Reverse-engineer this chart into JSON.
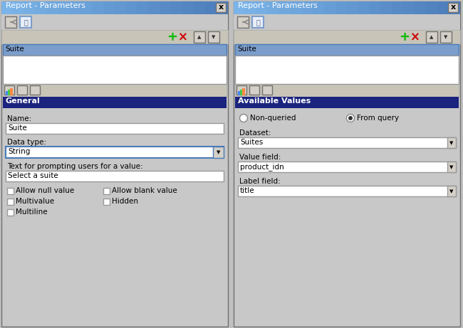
{
  "bg_color": "#c0c0c0",
  "dialog_bg": "#c8c8c8",
  "title_bar_gradient_left": "#7ab4e8",
  "title_bar_gradient_right": "#4a7ab8",
  "title_bar_text": "Report - Parameters",
  "dark_blue": "#1a237e",
  "white": "#ffffff",
  "light_gray": "#d4d0c8",
  "medium_gray": "#b8b4a8",
  "border_dark": "#707070",
  "border_light": "#f0f0f0",
  "text_color": "#000000",
  "selected_item_bg": "#7b9ecc",
  "selected_item_border": "#4a7ab8",
  "toolbar_bg": "#c8c4b8",
  "green_plus": "#00bb00",
  "red_x": "#cc0000",
  "left_panel": {
    "toolbar_section_label": "General",
    "name_label": "Name:",
    "name_value": "Suite",
    "datatype_label": "Data type:",
    "datatype_value": "String",
    "prompt_label": "Text for prompting users for a value:",
    "prompt_value": "Select a suite",
    "checkboxes_col1": [
      "Allow null value",
      "Multivalue",
      "Multiline"
    ],
    "checkboxes_col2": [
      "Allow blank value",
      "Hidden",
      ""
    ]
  },
  "right_panel": {
    "toolbar_section_label": "Available Values",
    "radio_options": [
      "Non-queried",
      "From query"
    ],
    "radio_selected": 1,
    "dataset_label": "Dataset:",
    "dataset_value": "Suites",
    "value_field_label": "Value field:",
    "value_field_value": "product_idn",
    "label_field_label": "Label field:",
    "label_field_value": "title"
  }
}
